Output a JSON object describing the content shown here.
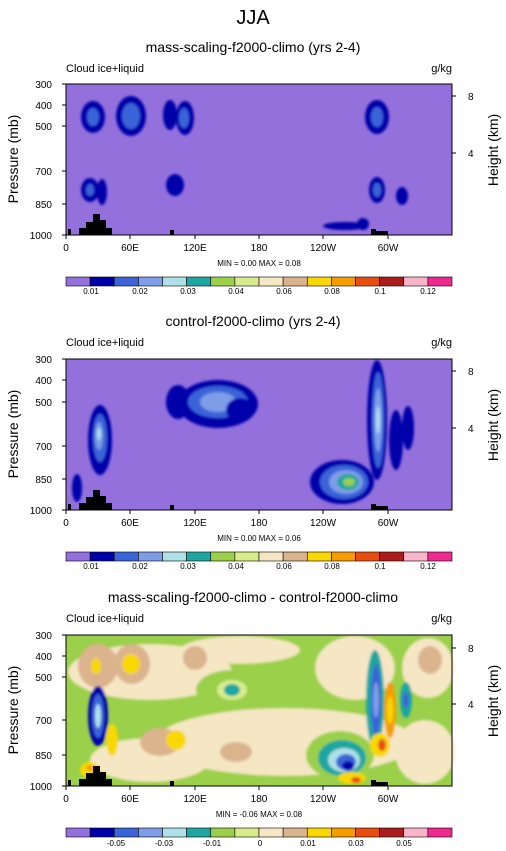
{
  "page_title": "JJA",
  "chart_data": [
    {
      "type": "heatmap",
      "title": "mass-scaling-f2000-climo (yrs 2-4)",
      "left_label": "Cloud ice+liquid",
      "right_label": "g/kg",
      "ylabel": "Pressure (mb)",
      "y2label": "Height (km)",
      "x_ticks": [
        "0",
        "60E",
        "120E",
        "180",
        "120W",
        "60W"
      ],
      "y_ticks": [
        "300",
        "400",
        "500",
        "700",
        "850",
        "1000"
      ],
      "y2_ticks": [
        "8",
        "4"
      ],
      "stats": "MIN =   0.00  MAX =   0.08",
      "colorbar_labels": [
        "0.01",
        "0.02",
        "0.03",
        "0.04",
        "0.06",
        "0.08",
        "0.1",
        "0.12"
      ],
      "colorbar_colors": [
        "#9370db",
        "#0000aa",
        "#3a64d8",
        "#7e9ce8",
        "#aee0e8",
        "#1fa6a2",
        "#9ad04a",
        "#d8ec8c",
        "#f5e6c4",
        "#dbb48e",
        "#f8d800",
        "#f59d00",
        "#e84e12",
        "#ad1c1c",
        "#f8b4c8",
        "#ee2a8e"
      ]
    },
    {
      "type": "heatmap",
      "title": "control-f2000-climo (yrs 2-4)",
      "left_label": "Cloud ice+liquid",
      "right_label": "g/kg",
      "ylabel": "Pressure (mb)",
      "y2label": "Height (km)",
      "x_ticks": [
        "0",
        "60E",
        "120E",
        "180",
        "120W",
        "60W"
      ],
      "y_ticks": [
        "300",
        "400",
        "500",
        "700",
        "850",
        "1000"
      ],
      "y2_ticks": [
        "8",
        "4"
      ],
      "stats": "MIN =   0.00  MAX =   0.06",
      "colorbar_labels": [
        "0.01",
        "0.02",
        "0.03",
        "0.04",
        "0.06",
        "0.08",
        "0.1",
        "0.12"
      ],
      "colorbar_colors": [
        "#9370db",
        "#0000aa",
        "#3a64d8",
        "#7e9ce8",
        "#aee0e8",
        "#1fa6a2",
        "#9ad04a",
        "#d8ec8c",
        "#f5e6c4",
        "#dbb48e",
        "#f8d800",
        "#f59d00",
        "#e84e12",
        "#ad1c1c",
        "#f8b4c8",
        "#ee2a8e"
      ]
    },
    {
      "type": "heatmap",
      "title": "mass-scaling-f2000-climo - control-f2000-climo",
      "left_label": "Cloud ice+liquid",
      "right_label": "g/kg",
      "ylabel": "Pressure (mb)",
      "y2label": "Height (km)",
      "x_ticks": [
        "0",
        "60E",
        "120E",
        "180",
        "120W",
        "60W"
      ],
      "y_ticks": [
        "300",
        "400",
        "500",
        "700",
        "850",
        "1000"
      ],
      "y2_ticks": [
        "8",
        "4"
      ],
      "stats": "MIN =  -0.06  MAX =   0.08",
      "colorbar_labels": [
        "-0.05",
        "-0.03",
        "-0.01",
        "0",
        "0.01",
        "0.03",
        "0.05"
      ],
      "colorbar_colors": [
        "#9370db",
        "#0000aa",
        "#3a64d8",
        "#7e9ce8",
        "#aee0e8",
        "#1fa6a2",
        "#9ad04a",
        "#d8ec8c",
        "#f5e6c4",
        "#dbb48e",
        "#f8d800",
        "#f59d00",
        "#e84e12",
        "#ad1c1c",
        "#f8b4c8",
        "#ee2a8e"
      ]
    }
  ]
}
